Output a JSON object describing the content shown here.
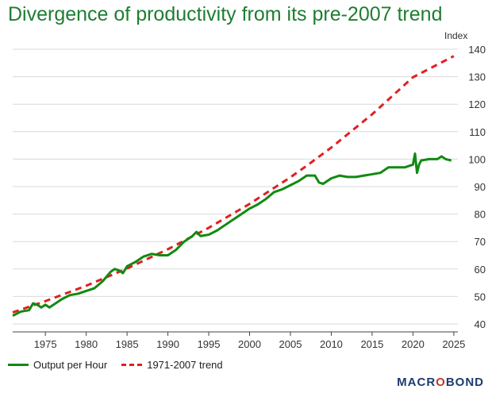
{
  "chart_data": {
    "type": "line",
    "title": "Divergence of productivity from its pre-2007 trend",
    "ylabel": "Index",
    "xlabel": "",
    "xlim": [
      1971,
      2025.5
    ],
    "ylim": [
      40,
      140
    ],
    "x_ticks": [
      "1975",
      "1980",
      "1985",
      "1990",
      "1995",
      "2000",
      "2005",
      "2010",
      "2015",
      "2020",
      "2025"
    ],
    "y_ticks": [
      "40",
      "50",
      "60",
      "70",
      "80",
      "90",
      "100",
      "110",
      "120",
      "130",
      "140"
    ],
    "grid": true,
    "legend_position": "bottom-left",
    "series": [
      {
        "name": "Output per Hour",
        "color": "#118a11",
        "style": "solid",
        "x": [
          1971.0,
          1972.0,
          1973.0,
          1973.5,
          1974.0,
          1974.5,
          1975.0,
          1975.5,
          1976.0,
          1977.0,
          1978.0,
          1979.0,
          1980.0,
          1981.0,
          1982.0,
          1983.0,
          1983.5,
          1984.0,
          1984.5,
          1985.0,
          1986.0,
          1987.0,
          1988.0,
          1989.0,
          1990.0,
          1991.0,
          1992.0,
          1993.0,
          1993.5,
          1994.0,
          1995.0,
          1996.0,
          1997.0,
          1998.0,
          1999.0,
          2000.0,
          2001.0,
          2002.0,
          2003.0,
          2004.0,
          2005.0,
          2006.0,
          2007.0,
          2008.0,
          2008.5,
          2009.0,
          2010.0,
          2011.0,
          2012.0,
          2013.0,
          2014.0,
          2015.0,
          2016.0,
          2017.0,
          2018.0,
          2019.0,
          2020.0,
          2020.25,
          2020.5,
          2020.75,
          2021.0,
          2022.0,
          2023.0,
          2023.5,
          2024.0,
          2024.7
        ],
        "values": [
          43,
          44.5,
          45,
          47.5,
          47,
          46,
          47,
          46,
          47,
          49,
          50.5,
          51,
          52,
          53,
          55.5,
          59,
          60,
          59.5,
          58.5,
          61,
          62.5,
          64.5,
          65.5,
          65,
          65,
          67,
          70,
          72,
          73.5,
          72,
          72.5,
          74,
          76,
          78,
          80,
          82,
          83.5,
          85.5,
          88,
          89,
          90.5,
          92,
          94,
          94,
          91.5,
          91,
          93,
          94,
          93.5,
          93.5,
          94,
          94.5,
          95,
          97,
          97,
          97,
          98,
          102,
          95,
          98,
          99.5,
          100,
          100,
          101,
          100,
          99.5
        ]
      },
      {
        "name": "1971-2007 trend",
        "color": "#e02020",
        "style": "dashed",
        "x": [
          1971,
          1975,
          1980,
          1985,
          1990,
          1995,
          2000,
          2005,
          2007,
          2010,
          2015,
          2020,
          2025
        ],
        "values": [
          44.2,
          48.3,
          53.9,
          60.2,
          67.2,
          75.0,
          83.7,
          93.4,
          97.6,
          104.2,
          116.3,
          129.8,
          137.5
        ]
      }
    ]
  },
  "brand": {
    "part1": "MACR",
    "part2": "O",
    "part3": "BOND"
  }
}
